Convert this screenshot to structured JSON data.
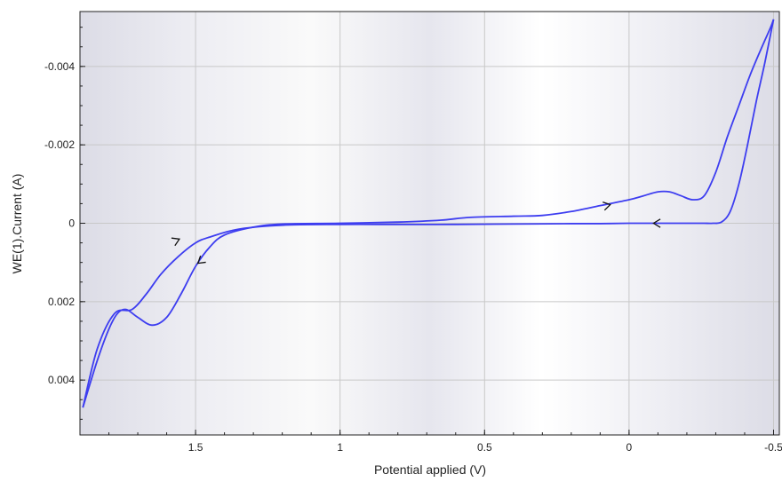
{
  "chart_data": {
    "type": "line",
    "title": "",
    "xlabel": "Potential applied (V)",
    "ylabel": "WE(1).Current (A)",
    "x_reversed": true,
    "y_reversed": true,
    "xlim": [
      1.9,
      -0.52
    ],
    "ylim": [
      -0.0054,
      0.0054
    ],
    "x_ticks": [
      {
        "value": 1.5,
        "label": "1.5"
      },
      {
        "value": 1.0,
        "label": "1"
      },
      {
        "value": 0.5,
        "label": "0.5"
      },
      {
        "value": 0.0,
        "label": "0"
      },
      {
        "value": -0.5,
        "label": "-0.5"
      }
    ],
    "y_ticks": [
      {
        "value": -0.004,
        "label": "-0.004"
      },
      {
        "value": -0.002,
        "label": "-0.002"
      },
      {
        "value": 0.0,
        "label": "0"
      },
      {
        "value": 0.002,
        "label": "0.002"
      },
      {
        "value": 0.004,
        "label": "0.004"
      }
    ],
    "grid": true,
    "colors": {
      "series": "#3d3df0",
      "grid": "#c8c8c8",
      "arrow": "#111111"
    },
    "series": [
      {
        "x": [
          -0.5,
          -0.47,
          -0.44,
          -0.41,
          -0.38,
          -0.35,
          -0.32,
          -0.29,
          -0.26,
          -0.22,
          -0.18,
          -0.14,
          -0.1,
          -0.05,
          0.0,
          0.1,
          0.2,
          0.4,
          0.6,
          0.8,
          1.0,
          1.2,
          1.35,
          1.45,
          1.5,
          1.56,
          1.62,
          1.67,
          1.72,
          1.78,
          1.84,
          1.89
        ],
        "y": [
          -0.0052,
          -0.0041,
          -0.0031,
          -0.002,
          -0.001,
          -0.0003,
          -3e-05,
          0.0,
          0.0,
          0.0,
          0.0,
          0.0,
          0.0,
          0.0,
          0.0,
          1e-05,
          1e-05,
          2e-05,
          3e-05,
          3e-05,
          3e-05,
          5e-05,
          0.00015,
          0.00035,
          0.0005,
          0.00085,
          0.0013,
          0.0018,
          0.0022,
          0.0023,
          0.0032,
          0.0047
        ]
      },
      {
        "x": [
          1.89,
          1.84,
          1.8,
          1.77,
          1.74,
          1.7,
          1.65,
          1.6,
          1.55,
          1.5,
          1.45,
          1.4,
          1.3,
          1.2,
          1.0,
          0.8,
          0.65,
          0.55,
          0.4,
          0.3,
          0.2,
          0.1,
          0.0,
          -0.05,
          -0.1,
          -0.14,
          -0.18,
          -0.22,
          -0.26,
          -0.3,
          -0.34,
          -0.38,
          -0.42,
          -0.46,
          -0.49,
          -0.5
        ],
        "y": [
          0.0047,
          0.0035,
          0.0027,
          0.0023,
          0.0022,
          0.0024,
          0.0026,
          0.0024,
          0.0018,
          0.0011,
          0.0006,
          0.0003,
          0.0001,
          2e-05,
          0.0,
          -3e-05,
          -8e-05,
          -0.00015,
          -0.00018,
          -0.0002,
          -0.0003,
          -0.00045,
          -0.0006,
          -0.0007,
          -0.0008,
          -0.0008,
          -0.0007,
          -0.0006,
          -0.0007,
          -0.0013,
          -0.0022,
          -0.003,
          -0.0038,
          -0.0045,
          -0.005,
          -0.0052
        ]
      }
    ],
    "direction_arrows": [
      {
        "x": 1.57,
        "y": 0.00045,
        "dx": -0.06,
        "dy": -0.0002
      },
      {
        "x": 1.48,
        "y": 0.00095,
        "dx": 0.05,
        "dy": 0.0003
      },
      {
        "x": 0.08,
        "y": -0.00045,
        "dx": -0.06,
        "dy": -0.0001
      },
      {
        "x": -0.1,
        "y": 0.0,
        "dx": 0.06,
        "dy": 0.0
      }
    ]
  }
}
